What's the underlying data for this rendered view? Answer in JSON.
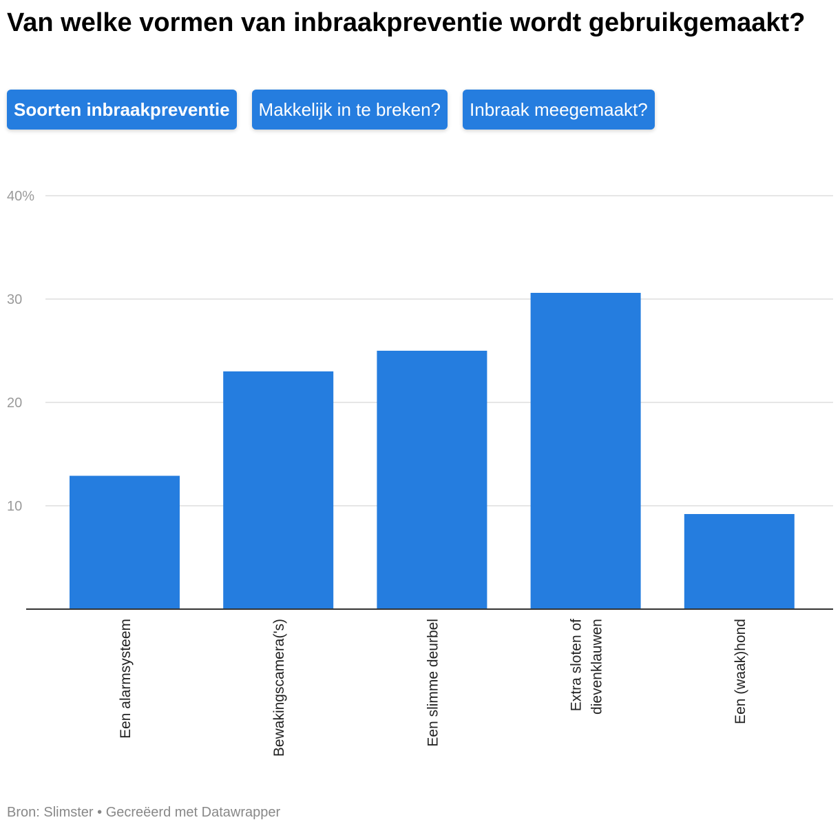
{
  "title": "Van welke vormen van inbraakpreventie wordt gebruikgemaakt?",
  "tabs": [
    {
      "label": "Soorten inbraakpreventie",
      "active": true
    },
    {
      "label": "Makkelijk in te breken?",
      "active": false
    },
    {
      "label": "Inbraak meegemaakt?",
      "active": false
    }
  ],
  "colors": {
    "bar": "#257ddf",
    "grid": "#dddddd",
    "axis": "#333333"
  },
  "chart_data": {
    "type": "bar",
    "categories": [
      [
        "Een alarmsysteem"
      ],
      [
        "Bewakingscamera('s)"
      ],
      [
        "Een slimme deurbel"
      ],
      [
        "Extra sloten of",
        "dievenklauwen"
      ],
      [
        "Een (waak)hond"
      ]
    ],
    "values": [
      12.9,
      23.0,
      25.0,
      30.6,
      9.2
    ],
    "ylim": [
      0,
      40
    ],
    "yticks": [
      {
        "value": 10,
        "label": "10"
      },
      {
        "value": 20,
        "label": "20"
      },
      {
        "value": 30,
        "label": "30"
      },
      {
        "value": 40,
        "label": "40%"
      }
    ],
    "grid": true,
    "xlabel": "",
    "ylabel": ""
  },
  "footer": "Bron: Slimster • Gecreëerd met Datawrapper"
}
